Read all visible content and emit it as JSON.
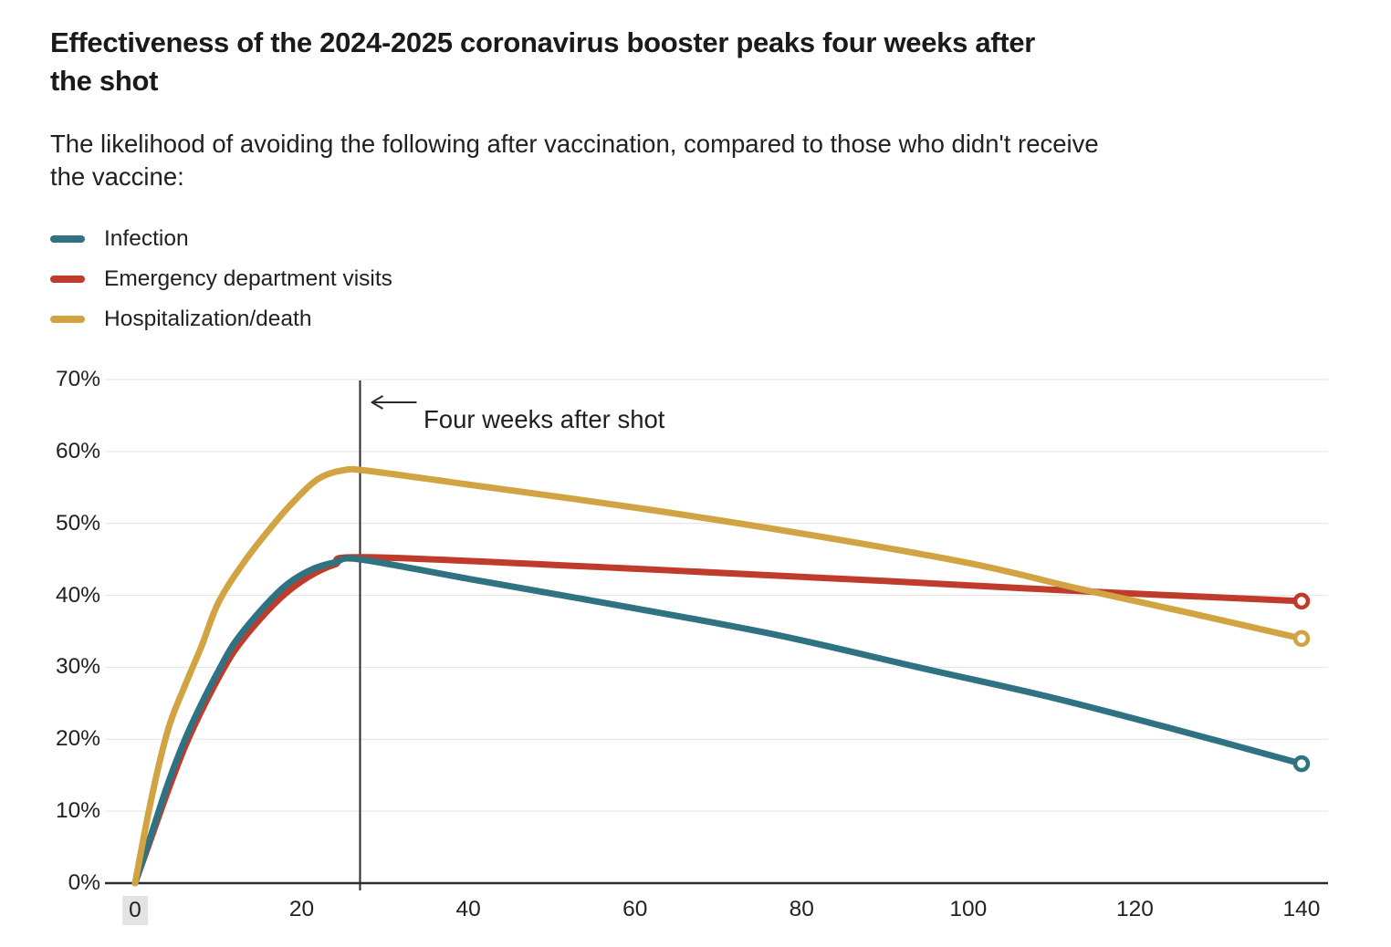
{
  "header": {
    "title": "Effectiveness of the 2024-2025 coronavirus booster peaks four weeks after\nthe shot",
    "subtitle": "The likelihood of avoiding the following after vaccination, compared to those who didn't receive\nthe vaccine:"
  },
  "legend": [
    {
      "label": "Infection",
      "color": "#2f7383"
    },
    {
      "label": "Emergency department visits",
      "color": "#bf3b2b"
    },
    {
      "label": "Hospitalization/death",
      "color": "#d2a342"
    }
  ],
  "annotation": {
    "label": "Four weeks after shot",
    "day": 27
  },
  "colors": {
    "grid": "#e2e2e2",
    "axis": "#2b2b2b",
    "text": "#212121",
    "title": "#1a1a1a",
    "tick_highlight_bg": "#e3e3e3"
  },
  "chart_data": {
    "type": "line",
    "title": "Effectiveness of the 2024-2025 coronavirus booster peaks four weeks after the shot",
    "subtitle": "The likelihood of avoiding the following after vaccination, compared to those who didn't receive the vaccine:",
    "xlabel": "",
    "ylabel": "",
    "xlim": [
      0,
      143
    ],
    "ylim": [
      0,
      70
    ],
    "x_ticks": [
      0,
      20,
      40,
      60,
      80,
      100,
      120,
      140
    ],
    "y_ticks": [
      0,
      10,
      20,
      30,
      40,
      50,
      60,
      70
    ],
    "y_tick_suffix": "%",
    "grid": "horizontal",
    "legend_position": "top-left",
    "annotation_line": {
      "x_day": 27,
      "label": "Four weeks after shot"
    },
    "series": [
      {
        "name": "Infection",
        "color": "#2f7383",
        "end_marker": true,
        "end_value": 16.6,
        "points": [
          [
            0,
            0
          ],
          [
            2,
            7
          ],
          [
            4,
            14
          ],
          [
            6,
            20
          ],
          [
            8,
            25
          ],
          [
            10,
            29.5
          ],
          [
            12,
            33.5
          ],
          [
            15,
            37.8
          ],
          [
            18,
            41.3
          ],
          [
            21,
            43.5
          ],
          [
            24,
            44.6
          ],
          [
            27,
            45
          ],
          [
            40,
            42.3
          ],
          [
            60,
            38.2
          ],
          [
            77,
            34.5
          ],
          [
            94,
            30
          ],
          [
            110,
            25.8
          ],
          [
            125,
            21.3
          ],
          [
            140,
            16.6
          ]
        ]
      },
      {
        "name": "Emergency department visits",
        "color": "#bf3b2b",
        "end_marker": true,
        "end_value": 39.2,
        "points": [
          [
            0,
            0
          ],
          [
            2,
            6.5
          ],
          [
            4,
            13
          ],
          [
            6,
            19
          ],
          [
            8,
            24
          ],
          [
            10,
            28.5
          ],
          [
            12,
            32.4
          ],
          [
            15,
            36.7
          ],
          [
            18,
            40.2
          ],
          [
            21,
            42.7
          ],
          [
            24,
            44.3
          ],
          [
            28,
            45.3
          ],
          [
            60,
            43.7
          ],
          [
            90,
            42
          ],
          [
            115,
            40.5
          ],
          [
            140,
            39.2
          ]
        ]
      },
      {
        "name": "Hospitalization/death",
        "color": "#d2a342",
        "end_marker": true,
        "end_value": 34,
        "points": [
          [
            0,
            0
          ],
          [
            2,
            12
          ],
          [
            4,
            21.5
          ],
          [
            6,
            27.5
          ],
          [
            8,
            33
          ],
          [
            10,
            39
          ],
          [
            13,
            44.5
          ],
          [
            16,
            49
          ],
          [
            19,
            53
          ],
          [
            22,
            56.2
          ],
          [
            25,
            57.4
          ],
          [
            28,
            57.3
          ],
          [
            40,
            55.4
          ],
          [
            60,
            52.2
          ],
          [
            80,
            48.6
          ],
          [
            100,
            44.5
          ],
          [
            113,
            41
          ],
          [
            126,
            37.7
          ],
          [
            140,
            34
          ]
        ]
      }
    ]
  }
}
